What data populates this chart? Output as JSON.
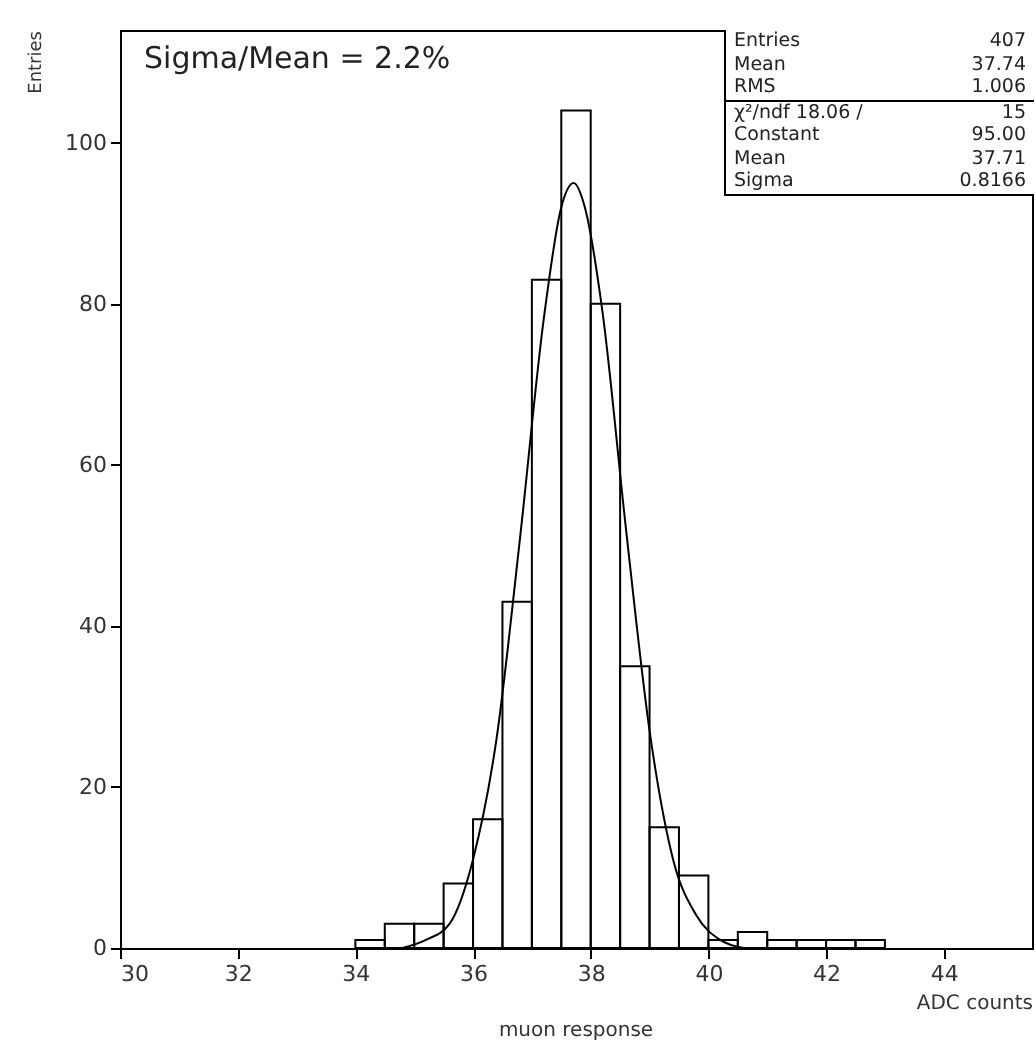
{
  "chart_data": {
    "type": "histogram",
    "title": "muon response",
    "xlabel": "ADC counts",
    "ylabel": "Entries",
    "bins": [
      34,
      34.5,
      35,
      35.5,
      36,
      36.5,
      37,
      37.5,
      38,
      38.5,
      39,
      39.5,
      40,
      40.5,
      41,
      41.5,
      42,
      42.5,
      43
    ],
    "values": [
      1,
      3,
      3,
      8,
      16,
      43,
      83,
      104,
      80,
      35,
      15,
      9,
      1,
      2,
      1,
      1,
      1,
      1
    ],
    "color": "#000000",
    "series": [
      {
        "type": "line",
        "color": "#000000",
        "x": [
          34.8,
          35.2,
          35.6,
          36.0,
          36.4,
          36.8,
          37.2,
          37.5,
          37.71,
          37.9,
          38.2,
          38.6,
          39.0,
          39.4,
          39.8,
          40.2,
          40.6
        ],
        "values": [
          0,
          1,
          3,
          11,
          26,
          51,
          78,
          92,
          95,
          92,
          79,
          52,
          27,
          11,
          4,
          1,
          0
        ]
      }
    ],
    "xlim": [
      30,
      45.5
    ],
    "xticks": [
      30,
      32,
      34,
      36,
      38,
      40,
      42,
      44
    ],
    "ylim": [
      0,
      114
    ],
    "yticks": [
      0,
      20,
      40,
      60,
      80,
      100
    ],
    "grid": false,
    "annotations": [
      "Sigma/Mean = 2.2%",
      "Entries 407",
      "Mean 37.74",
      "RMS 1.006",
      "χ²/ndf 18.06 / 15",
      "Constant 95.00",
      "Mean 37.71",
      "Sigma 0.8166"
    ]
  }
}
